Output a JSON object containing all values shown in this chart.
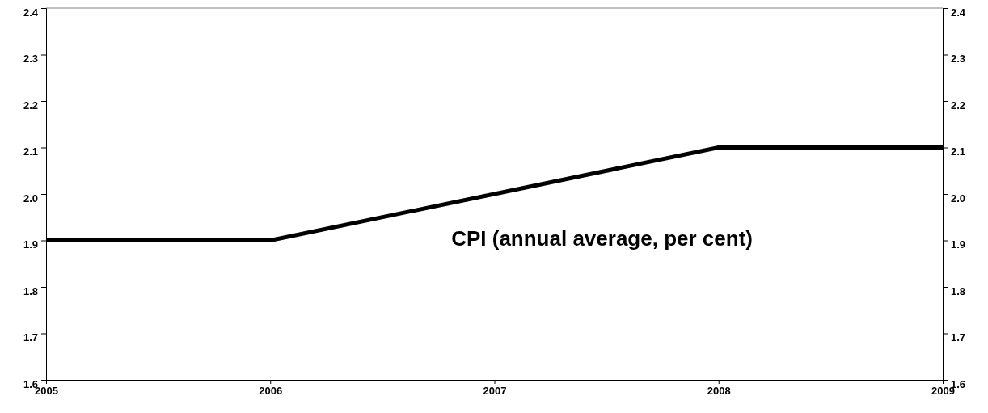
{
  "chart_data": {
    "type": "line",
    "title": "CPI (annual average, per cent)",
    "x": [
      2005,
      2006,
      2007,
      2008,
      2009
    ],
    "series": [
      {
        "color": "#000000",
        "values": [
          1.9,
          1.9,
          2.0,
          2.1,
          2.1
        ]
      }
    ],
    "xlim": [
      2005,
      2009
    ],
    "xticks": [
      2005,
      2006,
      2007,
      2008,
      2009
    ],
    "ylim": [
      1.6,
      2.4
    ],
    "yticks": [
      {
        "value": 1.6,
        "label": "1.6"
      },
      {
        "value": 1.7,
        "label": "1.7"
      },
      {
        "value": 1.8,
        "label": "1.8"
      },
      {
        "value": 1.9,
        "label": "1.9"
      },
      {
        "value": 2.0,
        "label": "2.0"
      },
      {
        "value": 2.1,
        "label": "2.1"
      },
      {
        "value": 2.2,
        "label": "2.2"
      },
      {
        "value": 2.3,
        "label": "2.3"
      },
      {
        "value": 2.4,
        "label": "2.4"
      }
    ],
    "y2lim": [
      1.6,
      2.4
    ],
    "y2ticks": [
      {
        "value": 1.6,
        "label": "1.6"
      },
      {
        "value": 1.7,
        "label": "1.7"
      },
      {
        "value": 1.8,
        "label": "1.8"
      },
      {
        "value": 1.9,
        "label": "1.9"
      },
      {
        "value": 2.0,
        "label": "2.0"
      },
      {
        "value": 2.1,
        "label": "2.1"
      },
      {
        "value": 2.2,
        "label": "2.2"
      },
      {
        "value": 2.3,
        "label": "2.3"
      },
      {
        "value": 2.4,
        "label": "2.4"
      }
    ],
    "grid": false,
    "legend": false,
    "marker": "none",
    "line_style": "solid"
  }
}
